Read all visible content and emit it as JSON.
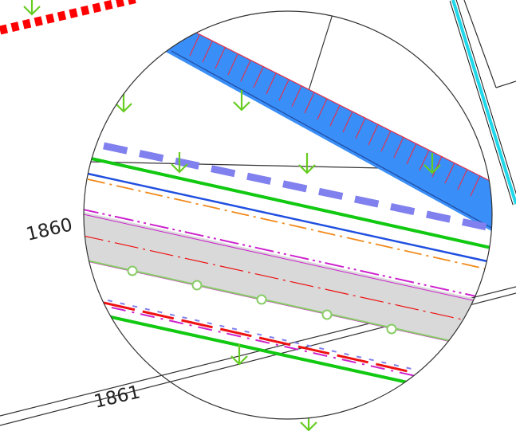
{
  "map": {
    "parcel_labels": [
      "1860",
      "1861"
    ],
    "colors": {
      "background": "#ffffff",
      "parcel_boundary": "#333333",
      "water_band": "#3a8ef7",
      "water_hatch": "#e5304a",
      "green_line": "#12c912",
      "blue_line": "#1f4fe0",
      "orange_line": "#f08a1a",
      "magenta_line": "#cc22cc",
      "gray_band": "#d9d9d9",
      "red_line": "#ee1111",
      "periwinkle_dashes": "#8080ee",
      "light_green_line": "#88cc66",
      "cyan_line": "#1fd8ea",
      "arrow_marker": "#66cc22",
      "red_dotted_top": "#ff0000"
    },
    "symbols": [
      "down-arrow-icon",
      "circle-node-icon"
    ]
  }
}
